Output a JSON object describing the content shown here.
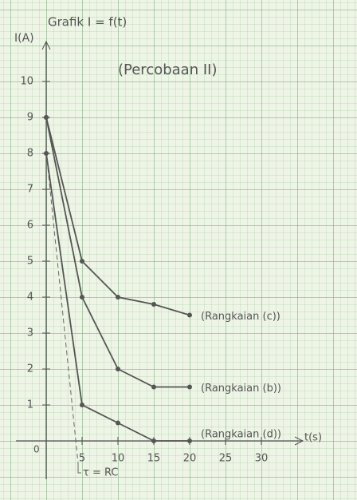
{
  "chart_data": {
    "type": "line",
    "title": "Grafik I = f(t)",
    "subtitle": "(Percobaan II)",
    "y_label": "I(A)",
    "x_label": "t(s)",
    "annotation": "τ = RC",
    "origin_label": "0",
    "x": [
      0,
      5,
      10,
      15,
      20
    ],
    "series": [
      {
        "name": "(Rangkaian (c))",
        "color": "#555555",
        "values": [
          9,
          5,
          4,
          3.8,
          3.5
        ]
      },
      {
        "name": "(Rangkaian (b))",
        "color": "#555555",
        "values": [
          9,
          4,
          2,
          1.5,
          1.5
        ]
      },
      {
        "name": "(Rangkaian (d))",
        "color": "#555555",
        "values": [
          8,
          1,
          0.5,
          0,
          0
        ]
      }
    ],
    "xlim": [
      0,
      42
    ],
    "ylim": [
      0,
      11
    ],
    "xticks": [
      5,
      10,
      15,
      20,
      25,
      30
    ],
    "yticks": [
      1,
      2,
      3,
      4,
      5,
      6,
      7,
      8,
      9,
      10
    ]
  }
}
